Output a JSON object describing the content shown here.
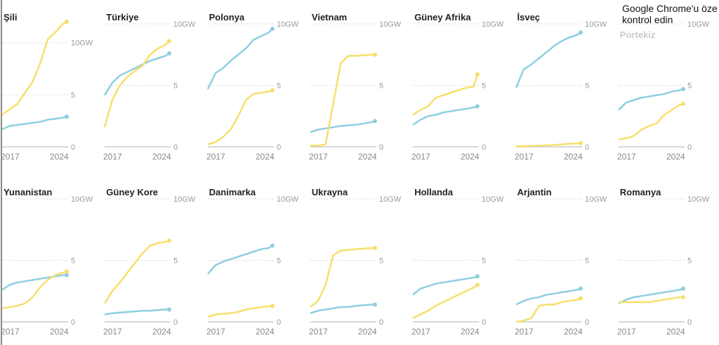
{
  "colors": {
    "wind": "#8ecfe0",
    "solar": "#f7df6b",
    "grid": "#bbb",
    "axis": "#ccc",
    "tick": "#999"
  },
  "tooltip": {
    "line1": "Google Chrome'u öze",
    "line2": "kontrol edin"
  },
  "chart_data": {
    "type": "line",
    "years": [
      2016.5,
      2017.5,
      2018.5,
      2019.5,
      2020.5,
      2021.5,
      2022.5,
      2023.5,
      2024.5,
      2025
    ],
    "xticks": [
      "2017",
      "2024"
    ],
    "yticks": [
      "0",
      "5",
      "10GW"
    ],
    "series_names": [
      "blue",
      "yellow"
    ],
    "panels": [
      {
        "title": "Şili",
        "ylim": [
          0,
          11.8
        ],
        "blue": [
          1.7,
          2.0,
          2.1,
          2.2,
          2.3,
          2.4,
          2.6,
          2.7,
          2.8,
          2.9
        ],
        "yellow": [
          3.1,
          3.6,
          4.1,
          5.2,
          6.2,
          8.0,
          10.3,
          11.0,
          11.8,
          12.0
        ]
      },
      {
        "title": "Türkiye",
        "ylim": [
          0,
          10
        ],
        "blue": [
          4.2,
          5.2,
          5.8,
          6.1,
          6.4,
          6.7,
          7.0,
          7.2,
          7.4,
          7.6
        ],
        "yellow": [
          1.6,
          3.8,
          5.0,
          5.7,
          6.2,
          6.6,
          7.5,
          8.0,
          8.3,
          8.6
        ]
      },
      {
        "title": "Polonya",
        "ylim": [
          0,
          10
        ],
        "blue": [
          4.7,
          6.0,
          6.4,
          7.0,
          7.5,
          8.0,
          8.7,
          9.0,
          9.3,
          9.6
        ],
        "yellow": [
          0.2,
          0.4,
          0.8,
          1.4,
          2.5,
          3.8,
          4.3,
          4.4,
          4.5,
          4.6
        ]
      },
      {
        "title": "Vietnam",
        "ylim": [
          0,
          10
        ],
        "blue": [
          1.2,
          1.4,
          1.5,
          1.6,
          1.7,
          1.75,
          1.8,
          1.9,
          2.0,
          2.1
        ],
        "yellow": [
          0.1,
          0.1,
          0.2,
          3.5,
          6.8,
          7.4,
          7.4,
          7.45,
          7.5,
          7.5
        ]
      },
      {
        "title": "Güney Afrika",
        "ylim": [
          0,
          10
        ],
        "blue": [
          1.8,
          2.2,
          2.5,
          2.6,
          2.8,
          2.9,
          3.0,
          3.1,
          3.2,
          3.3
        ],
        "yellow": [
          2.6,
          3.0,
          3.3,
          4.0,
          4.2,
          4.4,
          4.6,
          4.8,
          4.9,
          5.9
        ]
      },
      {
        "title": "İsveç",
        "ylim": [
          0,
          10
        ],
        "blue": [
          4.8,
          6.3,
          6.7,
          7.2,
          7.7,
          8.2,
          8.6,
          8.9,
          9.1,
          9.3
        ],
        "yellow": [
          0.05,
          0.05,
          0.08,
          0.1,
          0.12,
          0.15,
          0.2,
          0.25,
          0.28,
          0.3
        ]
      },
      {
        "title": "Portekiz",
        "faded": true,
        "ylim": [
          0,
          10
        ],
        "blue": [
          3.0,
          3.6,
          3.8,
          4.0,
          4.1,
          4.2,
          4.3,
          4.5,
          4.6,
          4.7
        ],
        "yellow": [
          0.6,
          0.7,
          0.9,
          1.4,
          1.7,
          1.9,
          2.6,
          3.0,
          3.4,
          3.5
        ]
      },
      {
        "title": "Yunanistan",
        "ylim": [
          0,
          10
        ],
        "blue": [
          2.6,
          3.0,
          3.2,
          3.3,
          3.4,
          3.5,
          3.6,
          3.7,
          3.8,
          3.8
        ],
        "yellow": [
          1.1,
          1.2,
          1.3,
          1.5,
          2.0,
          2.8,
          3.4,
          3.8,
          4.0,
          4.1
        ]
      },
      {
        "title": "Güney Kore",
        "ylim": [
          0,
          10
        ],
        "blue": [
          0.6,
          0.7,
          0.75,
          0.8,
          0.85,
          0.9,
          0.9,
          0.95,
          1.0,
          1.0
        ],
        "yellow": [
          1.5,
          2.5,
          3.2,
          4.0,
          4.8,
          5.6,
          6.2,
          6.4,
          6.5,
          6.6
        ]
      },
      {
        "title": "Danimarka",
        "ylim": [
          0,
          10
        ],
        "blue": [
          3.9,
          4.6,
          4.9,
          5.1,
          5.3,
          5.5,
          5.7,
          5.9,
          6.0,
          6.2
        ],
        "yellow": [
          0.4,
          0.6,
          0.65,
          0.7,
          0.8,
          1.0,
          1.1,
          1.2,
          1.25,
          1.3
        ]
      },
      {
        "title": "Ukrayna",
        "ylim": [
          0,
          10
        ],
        "blue": [
          0.7,
          0.9,
          1.0,
          1.1,
          1.2,
          1.2,
          1.3,
          1.35,
          1.4,
          1.4
        ],
        "yellow": [
          1.2,
          1.7,
          3.0,
          5.4,
          5.8,
          5.85,
          5.9,
          5.95,
          6.0,
          6.0
        ]
      },
      {
        "title": "Hollanda",
        "ylim": [
          0,
          10
        ],
        "blue": [
          2.2,
          2.7,
          2.9,
          3.1,
          3.2,
          3.3,
          3.4,
          3.5,
          3.6,
          3.7
        ],
        "yellow": [
          0.3,
          0.6,
          0.9,
          1.3,
          1.6,
          1.9,
          2.2,
          2.5,
          2.8,
          3.0
        ]
      },
      {
        "title": "Arjantin",
        "ylim": [
          0,
          10
        ],
        "blue": [
          1.4,
          1.7,
          1.9,
          2.0,
          2.2,
          2.3,
          2.4,
          2.5,
          2.6,
          2.7
        ],
        "yellow": [
          0,
          0.1,
          0.3,
          1.3,
          1.4,
          1.4,
          1.6,
          1.7,
          1.8,
          1.9
        ]
      },
      {
        "title": "Romanya",
        "ylim": [
          0,
          10
        ],
        "blue": [
          1.5,
          1.8,
          2.0,
          2.1,
          2.2,
          2.3,
          2.4,
          2.5,
          2.6,
          2.7
        ],
        "yellow": [
          1.6,
          1.6,
          1.6,
          1.6,
          1.6,
          1.7,
          1.8,
          1.9,
          2.0,
          2.0
        ]
      }
    ]
  }
}
